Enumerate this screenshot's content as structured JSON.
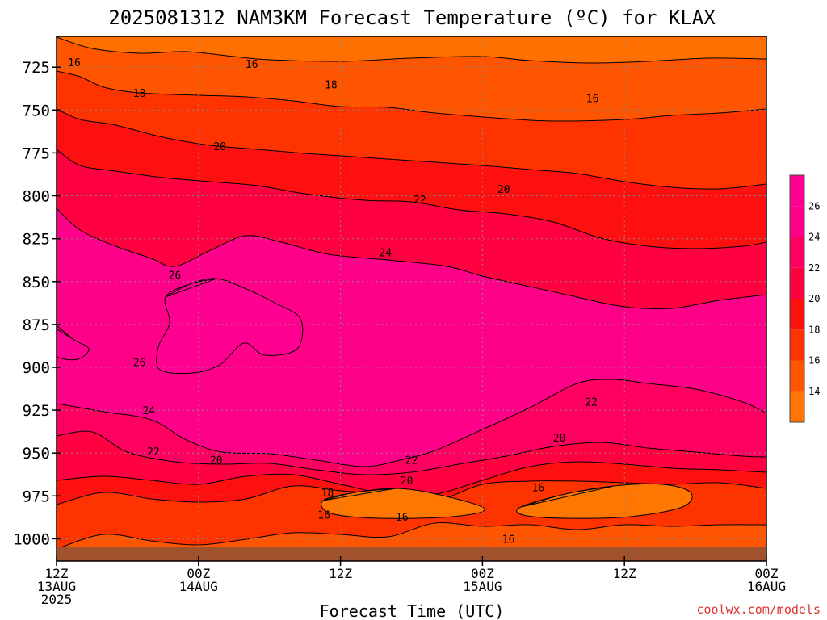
{
  "chart_data": {
    "type": "contour",
    "title": "2025081312 NAM3KM Forecast Temperature (ºC) for KLAX",
    "xlabel": "Forecast Time (UTC)",
    "ylabel": "",
    "x_ticks": [
      {
        "lines": [
          "12Z",
          "13AUG",
          "2025"
        ]
      },
      {
        "lines": [
          "00Z",
          "14AUG"
        ]
      },
      {
        "lines": [
          "12Z"
        ]
      },
      {
        "lines": [
          "00Z",
          "15AUG"
        ]
      },
      {
        "lines": [
          "12Z"
        ]
      },
      {
        "lines": [
          "00Z",
          "16AUG"
        ]
      }
    ],
    "y_ticks": [
      "725",
      "750",
      "775",
      "800",
      "825",
      "850",
      "875",
      "900",
      "925",
      "950",
      "975",
      "1000"
    ],
    "y_range_hpa": [
      1013,
      707
    ],
    "grid": true,
    "contour_levels": [
      16,
      18,
      20,
      22,
      24,
      26
    ],
    "colorbar": {
      "labels": [
        "14",
        "16",
        "18",
        "20",
        "22",
        "24",
        "26"
      ],
      "colors": [
        "#ff7700",
        "#ff5500",
        "#ff3300",
        "#ff1010",
        "#ff0040",
        "#ff0060",
        "#ff0088",
        "#ff0090"
      ]
    },
    "contour_labels": [
      {
        "text": "16",
        "x_hours": 1.5,
        "p_hpa": 722
      },
      {
        "text": "16",
        "x_hours": 16.5,
        "p_hpa": 723
      },
      {
        "text": "16",
        "x_hours": 29.2,
        "p_hpa": 987
      },
      {
        "text": "16",
        "x_hours": 40.7,
        "p_hpa": 970
      },
      {
        "text": "16",
        "x_hours": 45.3,
        "p_hpa": 743
      },
      {
        "text": "16",
        "x_hours": 38.2,
        "p_hpa": 1000
      },
      {
        "text": "16",
        "x_hours": 22.6,
        "p_hpa": 986
      },
      {
        "text": "18",
        "x_hours": 7.0,
        "p_hpa": 740
      },
      {
        "text": "18",
        "x_hours": 23.2,
        "p_hpa": 735
      },
      {
        "text": "18",
        "x_hours": 22.9,
        "p_hpa": 973
      },
      {
        "text": "20",
        "x_hours": 13.8,
        "p_hpa": 771
      },
      {
        "text": "20",
        "x_hours": 37.8,
        "p_hpa": 796
      },
      {
        "text": "20",
        "x_hours": 13.5,
        "p_hpa": 954
      },
      {
        "text": "20",
        "x_hours": 29.6,
        "p_hpa": 966
      },
      {
        "text": "20",
        "x_hours": 42.5,
        "p_hpa": 941
      },
      {
        "text": "22",
        "x_hours": 30.7,
        "p_hpa": 802
      },
      {
        "text": "22",
        "x_hours": 8.2,
        "p_hpa": 949
      },
      {
        "text": "22",
        "x_hours": 30.0,
        "p_hpa": 954
      },
      {
        "text": "22",
        "x_hours": 45.2,
        "p_hpa": 920
      },
      {
        "text": "24",
        "x_hours": 27.8,
        "p_hpa": 833
      },
      {
        "text": "24",
        "x_hours": 7.8,
        "p_hpa": 925
      },
      {
        "text": "26",
        "x_hours": 10.0,
        "p_hpa": 846
      },
      {
        "text": "26",
        "x_hours": 7.0,
        "p_hpa": 897
      }
    ]
  },
  "credit": "coolwx.com/models"
}
